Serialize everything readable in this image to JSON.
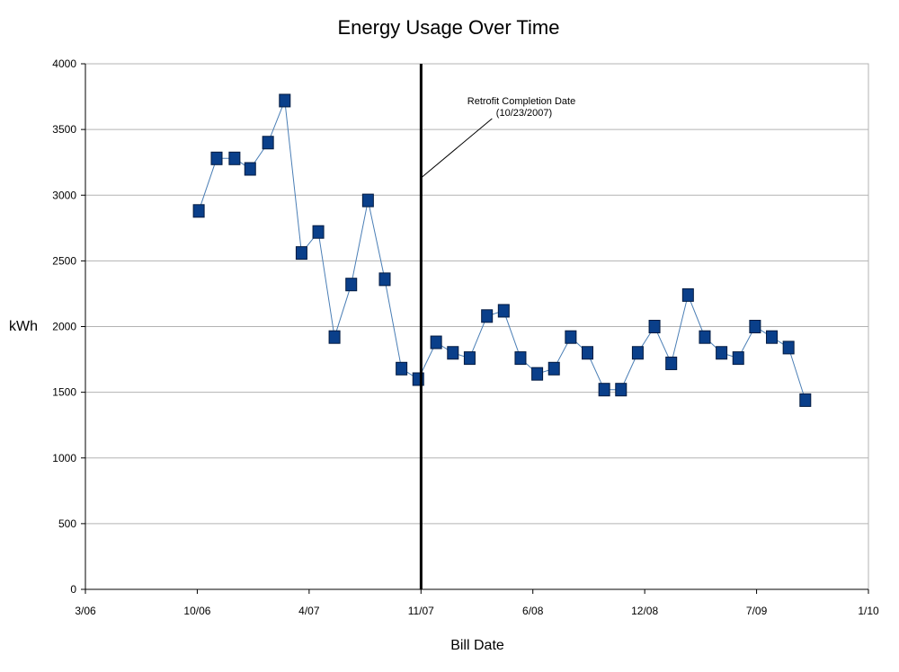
{
  "chart_data": {
    "type": "line",
    "title": "Energy Usage Over Time",
    "xlabel": "Bill Date",
    "ylabel": "kWh",
    "x_tick_labels": [
      "3/06",
      "10/06",
      "4/07",
      "11/07",
      "6/08",
      "12/08",
      "7/09",
      "1/10"
    ],
    "y_ticks": [
      0,
      500,
      1000,
      1500,
      2000,
      2500,
      3000,
      3500,
      4000
    ],
    "ylim": [
      0,
      4000
    ],
    "xlim": [
      "2006-03-01",
      "2010-01-01"
    ],
    "grid": "horizontal",
    "legend": "none",
    "series": [
      {
        "x": [
          "2006-09-20",
          "2006-10-22",
          "2006-11-23",
          "2006-12-21",
          "2007-01-22",
          "2007-02-21",
          "2007-03-23",
          "2007-04-22",
          "2007-05-21",
          "2007-06-20",
          "2007-07-20",
          "2007-08-19",
          "2007-09-18",
          "2007-10-18",
          "2007-11-19",
          "2007-12-19",
          "2008-01-18",
          "2008-02-18",
          "2008-03-19",
          "2008-04-18",
          "2008-05-18",
          "2008-06-17",
          "2008-07-17",
          "2008-08-16",
          "2008-09-15",
          "2008-10-15",
          "2008-11-14",
          "2008-12-14",
          "2009-01-13",
          "2009-02-12",
          "2009-03-14",
          "2009-04-13",
          "2009-05-13",
          "2009-06-12",
          "2009-07-12",
          "2009-08-11",
          "2009-09-10"
        ],
        "y": [
          2880,
          3280,
          3280,
          3200,
          3400,
          3720,
          2560,
          2720,
          1920,
          2320,
          2960,
          2360,
          1680,
          1600,
          1880,
          1800,
          1760,
          2080,
          2120,
          1760,
          1640,
          1680,
          1920,
          1800,
          1520,
          1520,
          1800,
          2000,
          1720,
          2240,
          1920,
          1800,
          1760,
          2000,
          1920,
          1840,
          1440
        ]
      }
    ],
    "annotations": [
      {
        "label_line1": "Retrofit Completion Date",
        "label_line2": "(10/23/2007)",
        "x": "2007-10-23"
      }
    ],
    "colors": {
      "line": "#4a7eb5",
      "marker_fill": "#0a3f8a",
      "marker_stroke": "#021a40",
      "grid": "#b3b3b3",
      "retrofit_line": "#000000"
    }
  }
}
